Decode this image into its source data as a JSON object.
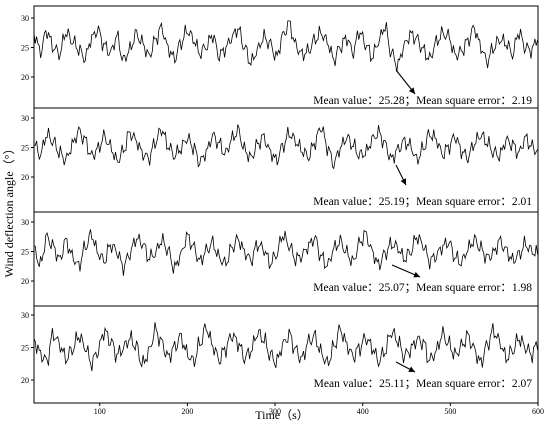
{
  "chart_data": {
    "type": "line",
    "xlabel": "Time（s）",
    "ylabel": "Wind deflection angle（°）",
    "xlim": [
      25,
      600
    ],
    "x_ticks": [
      100,
      200,
      300,
      400,
      500,
      600
    ],
    "y_ticks": [
      20,
      25,
      30
    ],
    "panels": [
      {
        "id": "panel-1",
        "ylim": [
          18,
          32
        ],
        "mean": 25.28,
        "mse": 2.19,
        "annotation": "Mean value：25.28；Mean square error：2.19",
        "samples": [
          27.4,
          24.3,
          27.8,
          25.1,
          23.9,
          27.6,
          26.1,
          24.7,
          23.2,
          26.5,
          28.0,
          25.3,
          24.1,
          26.9,
          22.8,
          24.6,
          27.3,
          25.8,
          23.5,
          26.2,
          28.4,
          24.9,
          23.1,
          25.7,
          27.9,
          26.4,
          24.0,
          25.2,
          27.1,
          23.6,
          24.8,
          26.7,
          28.2,
          25.0,
          22.4,
          24.5,
          26.8,
          25.6,
          23.3,
          27.0,
          29.1,
          25.4,
          23.8,
          24.4,
          26.3,
          27.5,
          25.9,
          22.9,
          25.1,
          26.6,
          24.2,
          27.7,
          25.5,
          23.4,
          26.0,
          28.6,
          24.1,
          21.9,
          25.3,
          27.2,
          26.5,
          24.6,
          23.0,
          25.8,
          27.4,
          26.9,
          23.7,
          24.3,
          26.1,
          28.3,
          25.2,
          22.6,
          24.9,
          26.4,
          25.7,
          23.9,
          27.6,
          25.0,
          24.5,
          26.8
        ]
      },
      {
        "id": "panel-2",
        "ylim": [
          18,
          32
        ],
        "mean": 25.19,
        "mse": 2.01,
        "annotation": "Mean value：25.19；Mean square error：2.01",
        "samples": [
          25.6,
          23.8,
          27.2,
          26.0,
          24.1,
          22.9,
          25.4,
          27.8,
          26.3,
          23.5,
          24.7,
          26.9,
          25.1,
          22.7,
          24.4,
          27.5,
          26.2,
          24.0,
          23.1,
          25.9,
          28.1,
          25.3,
          23.6,
          24.8,
          26.6,
          25.0,
          22.5,
          24.2,
          27.0,
          25.7,
          23.9,
          26.4,
          27.9,
          24.6,
          23.2,
          25.5,
          26.8,
          24.3,
          22.8,
          25.2,
          27.4,
          26.1,
          24.5,
          23.4,
          25.8,
          28.5,
          25.0,
          22.2,
          24.9,
          26.7,
          25.4,
          23.7,
          24.1,
          26.3,
          27.6,
          25.6,
          23.0,
          24.6,
          26.0,
          25.3,
          22.9,
          24.8,
          27.3,
          26.5,
          23.8,
          25.1,
          26.9,
          24.4,
          23.3,
          25.7,
          27.1,
          25.9,
          24.2,
          23.6,
          26.2,
          25.5,
          24.0,
          26.6,
          25.2,
          24.3
        ]
      },
      {
        "id": "panel-3",
        "ylim": [
          18,
          32
        ],
        "mean": 25.07,
        "mse": 1.98,
        "annotation": "Mean value：25.07；Mean square error：1.98",
        "samples": [
          25.3,
          22.8,
          27.4,
          25.9,
          23.6,
          26.8,
          24.2,
          22.5,
          25.7,
          27.9,
          24.8,
          23.4,
          26.1,
          25.0,
          22.3,
          24.6,
          27.2,
          26.4,
          23.9,
          24.7,
          26.9,
          25.2,
          22.1,
          24.4,
          27.6,
          25.8,
          23.3,
          25.1,
          26.5,
          24.0,
          22.9,
          25.6,
          27.1,
          24.9,
          23.5,
          26.2,
          25.4,
          23.0,
          24.5,
          27.8,
          26.0,
          23.7,
          24.3,
          25.9,
          27.3,
          24.1,
          22.6,
          25.5,
          26.7,
          24.8,
          23.2,
          26.4,
          28.0,
          25.0,
          22.7,
          24.6,
          26.3,
          25.7,
          23.8,
          24.9,
          27.5,
          26.1,
          23.4,
          24.2,
          25.8,
          26.6,
          24.0,
          23.1,
          25.4,
          27.0,
          25.6,
          23.9,
          24.7,
          26.8,
          25.2,
          23.5,
          24.4,
          26.3,
          25.1,
          24.6
        ]
      },
      {
        "id": "panel-4",
        "ylim": [
          18,
          32
        ],
        "mean": 25.11,
        "mse": 2.07,
        "annotation": "Mean value：25.11；Mean square error：2.07",
        "samples": [
          26.2,
          24.0,
          22.9,
          27.1,
          25.5,
          23.3,
          24.7,
          26.8,
          25.1,
          22.6,
          24.4,
          27.5,
          26.0,
          23.8,
          24.9,
          26.4,
          25.2,
          22.4,
          24.3,
          27.7,
          25.8,
          23.5,
          25.0,
          26.6,
          24.1,
          22.8,
          25.6,
          28.1,
          25.3,
          23.1,
          24.8,
          26.9,
          25.7,
          23.4,
          24.5,
          27.2,
          26.3,
          23.9,
          22.7,
          25.4,
          27.0,
          24.6,
          23.2,
          25.9,
          26.7,
          24.2,
          22.5,
          25.1,
          27.8,
          25.5,
          23.6,
          24.9,
          26.5,
          25.0,
          22.9,
          24.4,
          27.4,
          26.1,
          23.7,
          24.6,
          26.2,
          25.8,
          23.0,
          24.3,
          27.1,
          25.6,
          23.8,
          25.2,
          26.8,
          24.7,
          22.6,
          25.3,
          27.6,
          25.9,
          23.4,
          24.5,
          26.4,
          25.1,
          23.9,
          25.7
        ]
      }
    ]
  }
}
